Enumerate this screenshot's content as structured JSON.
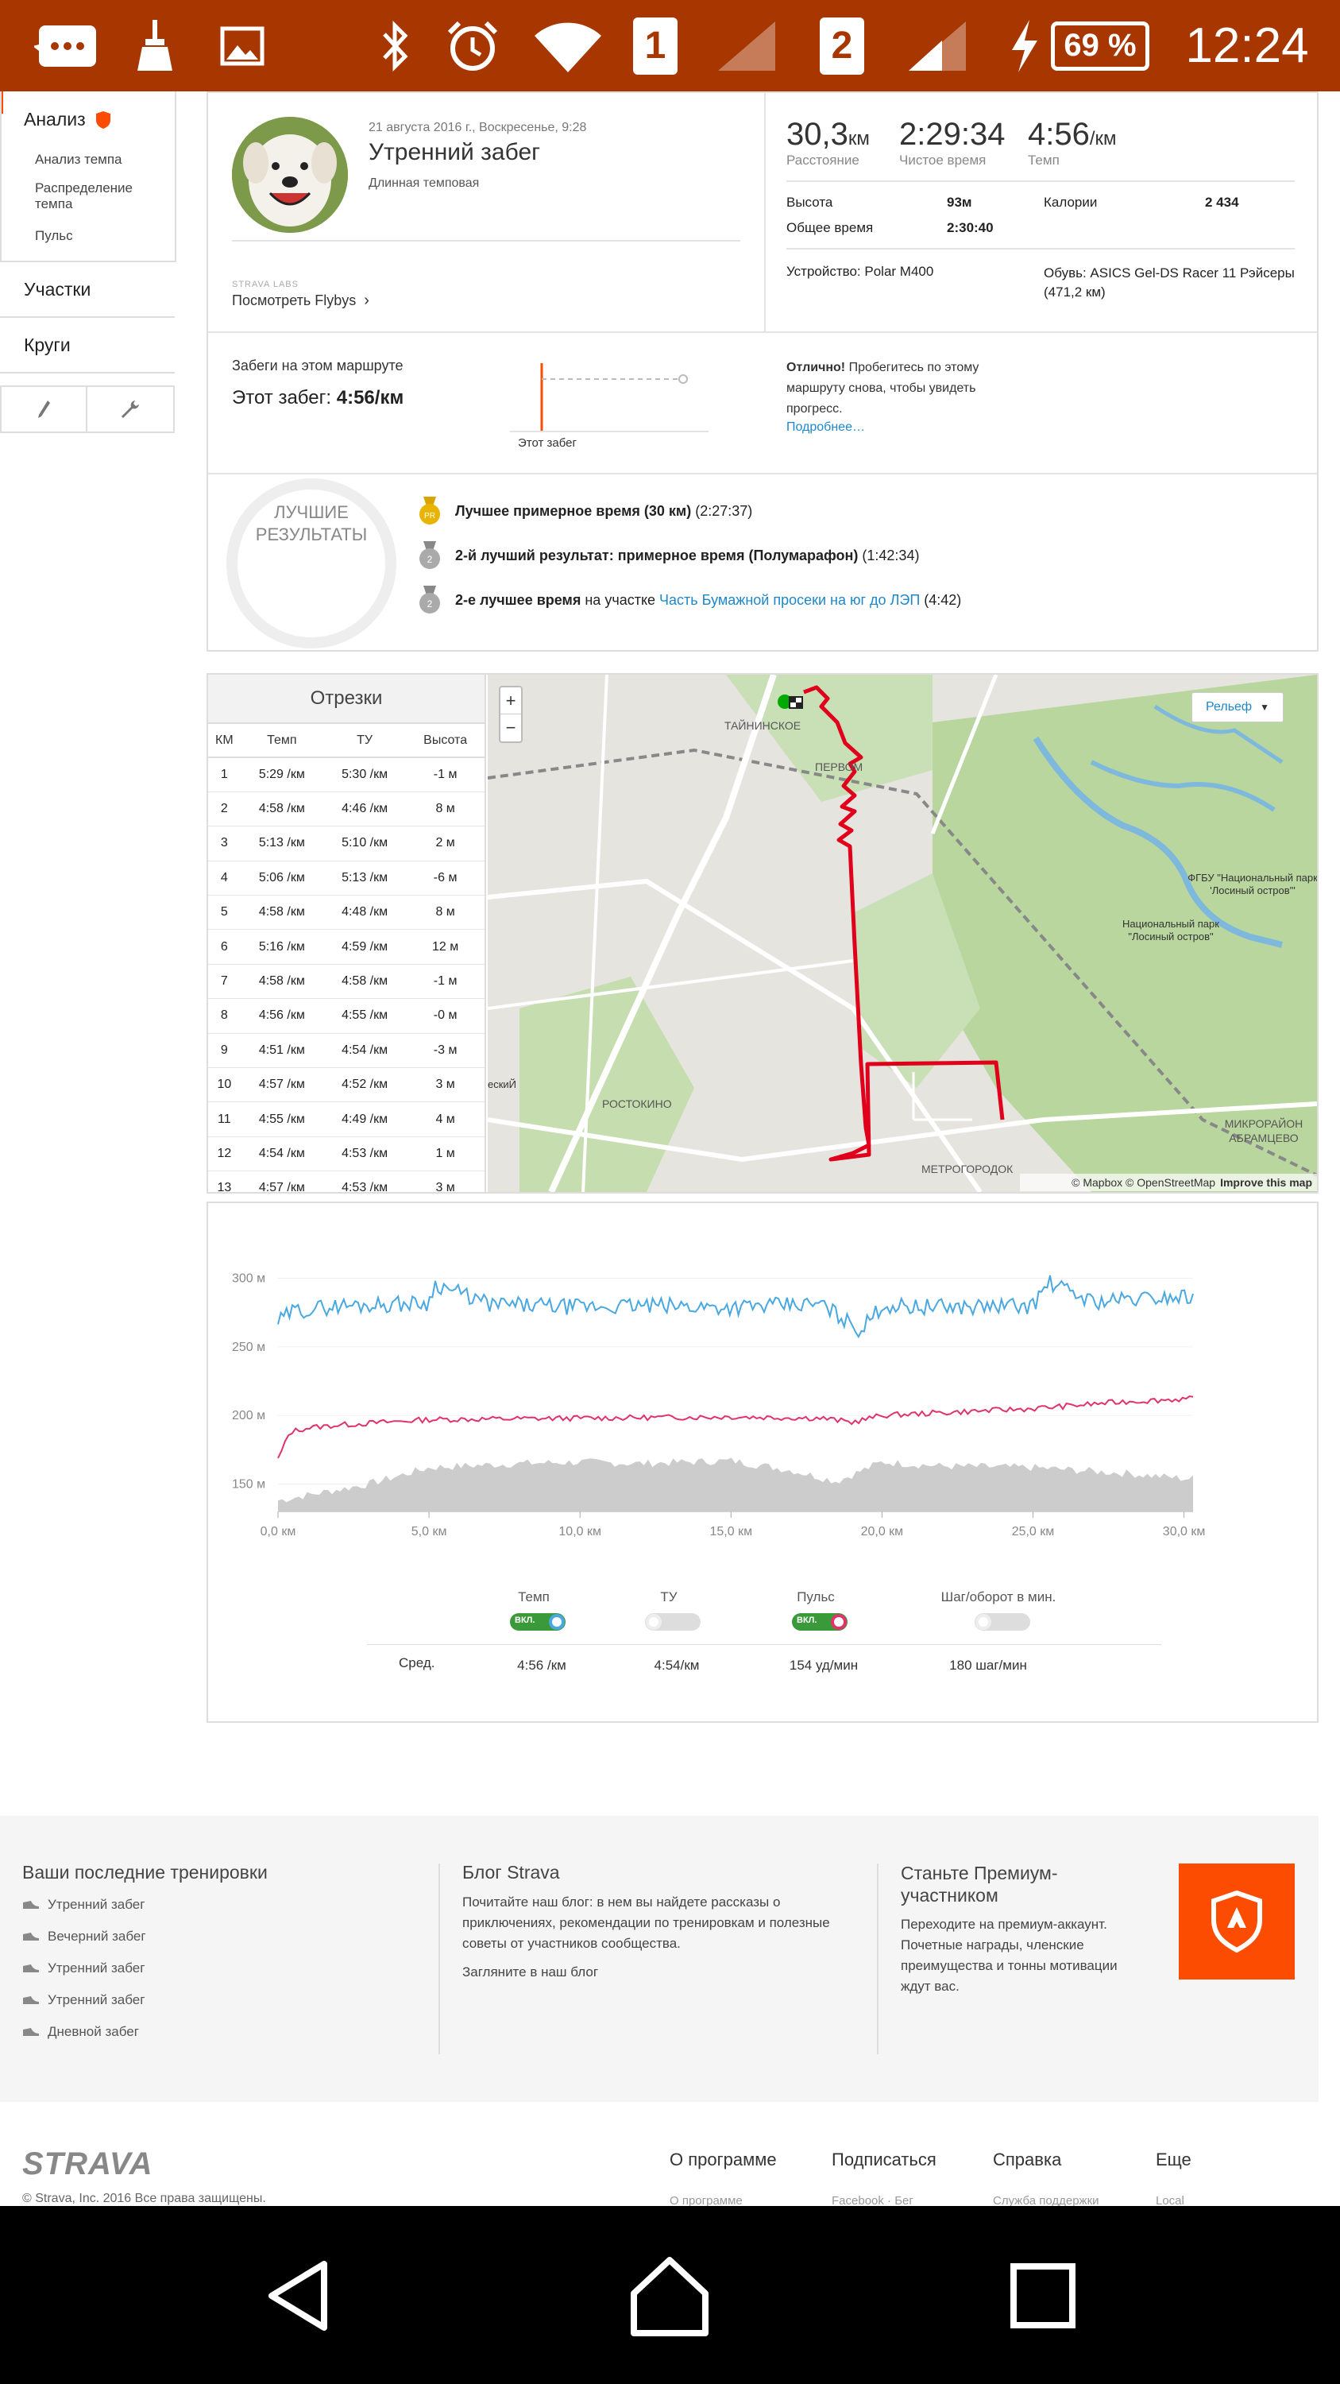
{
  "status_bar": {
    "sim1": "1",
    "sim2": "2",
    "battery": "69 %",
    "time": "12:24"
  },
  "sidebar": {
    "analysis_label": "Анализ",
    "sub_items": [
      "Анализ темпа",
      "Распределение темпа",
      "Пульс"
    ],
    "segments_label": "Участки",
    "laps_label": "Круги"
  },
  "activity": {
    "date": "21 августа 2016 г., Воскресенье, 9:28",
    "title": "Утренний забег",
    "subtitle": "Длинная темповая",
    "labs_label": "STRAVA LABS",
    "flybys_link": "Посмотреть Flybys",
    "distance_value": "30,3",
    "distance_unit": "км",
    "distance_label": "Расстояние",
    "moving_time_value": "2:29:34",
    "moving_time_label": "Чистое время",
    "pace_value": "4:56",
    "pace_unit": "/км",
    "pace_label": "Темп",
    "elevation_label": "Высота",
    "elevation_value": "93м",
    "calories_label": "Калории",
    "calories_value": "2 434",
    "elapsed_label": "Общее время",
    "elapsed_value": "2:30:40",
    "device": "Устройство: Polar M400",
    "shoes": "Обувь: ASICS Gel-DS Racer 11 Рэйсеры (471,2 км)"
  },
  "route": {
    "heading": "Забеги на этом маршруте",
    "this_run_label": "Этот забег:",
    "this_run_value": "4:56/км",
    "mini_chart_label": "Этот забег",
    "great_bold": "Отлично!",
    "great_text": "Пробегитесь по этому маршруту снова, чтобы увидеть прогресс.",
    "more_link": "Подробнее…"
  },
  "best": {
    "badge_text_1": "ЛУЧШИЕ",
    "badge_text_2": "РЕЗУЛЬТАТЫ",
    "items": [
      {
        "medal": "PR",
        "bold": "Лучшее примерное время (30 км)",
        "rest": " (2:27:37)"
      },
      {
        "medal": "2",
        "bold": "2-й лучший результат: примерное время (Полумарафон)",
        "rest": " (1:42:34)"
      },
      {
        "medal": "2",
        "bold": "2-е лучшее время",
        "mid": " на участке ",
        "link": "Часть Бумажной просеки на юг до ЛЭП",
        "rest": " (4:42)"
      }
    ]
  },
  "splits": {
    "title": "Отрезки",
    "headers": [
      "КМ",
      "Темп",
      "ТУ",
      "Высота"
    ],
    "rows": [
      [
        "1",
        "5:29 /км",
        "5:30 /км",
        "-1 м"
      ],
      [
        "2",
        "4:58 /км",
        "4:46 /км",
        "8 м"
      ],
      [
        "3",
        "5:13 /км",
        "5:10 /км",
        "2 м"
      ],
      [
        "4",
        "5:06 /км",
        "5:13 /км",
        "-6 м"
      ],
      [
        "5",
        "4:58 /км",
        "4:48 /км",
        "8 м"
      ],
      [
        "6",
        "5:16 /км",
        "4:59 /км",
        "12 м"
      ],
      [
        "7",
        "4:58 /км",
        "4:58 /км",
        "-1 м"
      ],
      [
        "8",
        "4:56 /км",
        "4:55 /км",
        "-0 м"
      ],
      [
        "9",
        "4:51 /км",
        "4:54 /км",
        "-3 м"
      ],
      [
        "10",
        "4:57 /км",
        "4:52 /км",
        "3 м"
      ],
      [
        "11",
        "4:55 /км",
        "4:49 /км",
        "4 м"
      ],
      [
        "12",
        "4:54 /км",
        "4:53 /км",
        "1 м"
      ],
      [
        "13",
        "4:57 /км",
        "4:53 /км",
        "3 м"
      ]
    ]
  },
  "map": {
    "zoom_in": "+",
    "zoom_out": "−",
    "style_button": "Рельеф",
    "labels": [
      "ТАЙНИНСКОЕ",
      "ПЕРВОМ",
      "ФГБУ \"Национальный парк 'Лосиный остров'\"",
      "Национальный парк \"Лосиный остров\"",
      "ескиЙ",
      "РОСТОКИНО",
      "МИКРОРАЙОН АБРАМЦЕВО",
      "МЕТРОГОРОДОК"
    ],
    "attribution": "© Mapbox © OpenStreetMap",
    "improve": "Improve this map"
  },
  "chart_data": {
    "type": "line",
    "x_label_ticks": [
      "0,0 км",
      "5,0 км",
      "10,0 км",
      "15,0 км",
      "20,0 км",
      "25,0 км",
      "30,0 км"
    ],
    "y_label_ticks": [
      "300 м",
      "250 м",
      "200 м",
      "150 м"
    ],
    "xlim": [
      0,
      30.3
    ],
    "series": [
      {
        "name": "Темп",
        "color": "#4aa8e0",
        "x": [
          0,
          0.5,
          2,
          5,
          5.2,
          7,
          10,
          12,
          15,
          18,
          19.3,
          20,
          22,
          25,
          25.5,
          27,
          30
        ],
        "values": [
          268,
          276,
          280,
          282,
          296,
          281,
          279,
          280,
          279,
          281,
          262,
          280,
          279,
          280,
          297,
          283,
          287
        ]
      },
      {
        "name": "Пульс",
        "color": "#e0336b",
        "x": [
          0,
          0.4,
          1,
          2,
          5,
          10,
          15,
          18,
          19,
          20,
          25,
          28,
          30
        ],
        "values": [
          168,
          188,
          191,
          193,
          197,
          198,
          199,
          198,
          195,
          200,
          205,
          210,
          212
        ]
      },
      {
        "name": "Высота",
        "color": "#cccccc",
        "x": [
          0,
          1,
          3,
          5,
          8,
          10,
          12,
          15,
          17,
          18.5,
          20,
          22,
          25,
          28,
          30
        ],
        "values": [
          138,
          142,
          150,
          162,
          165,
          166,
          165,
          167,
          160,
          152,
          166,
          163,
          162,
          158,
          154
        ]
      }
    ],
    "legend": {
      "items": [
        {
          "label": "Темп",
          "state": "ВКЛ.",
          "on": true,
          "color": "#4aa8e0"
        },
        {
          "label": "ТУ",
          "state": "",
          "on": false,
          "color": "#cccccc"
        },
        {
          "label": "Пульс",
          "state": "ВКЛ.",
          "on": true,
          "color": "#e0336b"
        },
        {
          "label": "Шаг/оборот в мин.",
          "state": "",
          "on": false,
          "color": "#cccccc"
        }
      ],
      "avg_label": "Сред.",
      "avg_values": [
        "4:56 /км",
        "4:54/км",
        "154 уд/мин",
        "180 шаг/мин"
      ]
    }
  },
  "footer": {
    "col1_title": "Ваши последние тренировки",
    "col1_links": [
      "Утренний забег",
      "Вечерний забег",
      "Утренний забег",
      "Утренний забег",
      "Дневной забег"
    ],
    "col2_title": "Блог Strava",
    "col2_text": "Почитайте наш блог: в нем вы найдете рассказы о приключениях, рекомендации по тренировкам и полезные советы от участников сообщества.",
    "col2_link": "Загляните в наш блог",
    "col3_title": "Станьте Премиум-участником",
    "col3_text": "Переходите на премиум-аккаунт. Почетные награды, членские преимущества и тонны мотивации ждут вас."
  },
  "bottom": {
    "logo": "STRAVA",
    "copyright": "© Strava, Inc. 2016 Все права защищены.",
    "links": [
      "О программе",
      "Подписаться",
      "Справка",
      "Еще"
    ],
    "sublinks": [
      "О программе",
      "Facebook · Бег",
      "Служба поддержки",
      "Local"
    ]
  }
}
